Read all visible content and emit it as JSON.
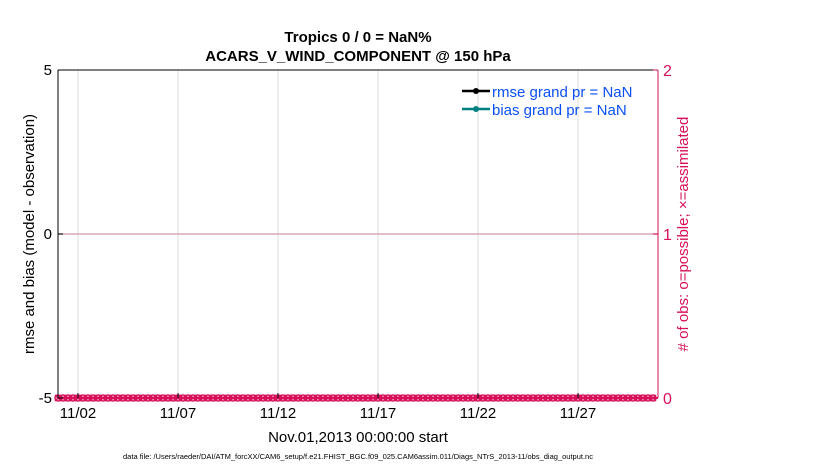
{
  "chart_data": {
    "type": "line",
    "title": [
      "Tropics 0 / 0 = NaN%",
      "ACARS_V_WIND_COMPONENT @ 150 hPa"
    ],
    "xlabel": "Nov.01,2013 00:00:00 start",
    "ylabel_left": "rmse and bias (model - observation)",
    "ylabel_right": "# of obs: o=possible; ×=assimilated",
    "footnote": "data file: /Users/raeder/DAI/ATM_forcXX/CAM6_setup/f.e21.FHIST_BGC.f09_025.CAM6assim.011/Diags_NTrS_2013-11/obs_diag_output.nc",
    "x_range_days": [
      0,
      30
    ],
    "x_ticks": [
      {
        "day": 1,
        "label": "11/02"
      },
      {
        "day": 6,
        "label": "11/07"
      },
      {
        "day": 11,
        "label": "11/12"
      },
      {
        "day": 16,
        "label": "11/17"
      },
      {
        "day": 21,
        "label": "11/22"
      },
      {
        "day": 26,
        "label": "11/27"
      }
    ],
    "ylim_left": [
      -5,
      5
    ],
    "yticks_left": [
      "-5",
      "0",
      "5"
    ],
    "ylim_right": [
      0,
      2
    ],
    "yticks_right": [
      "0",
      "1",
      "2"
    ],
    "grid": "vertical",
    "legend_placement": "top-right",
    "legend": [
      {
        "label": "rmse grand pr = NaN",
        "color": "#000000"
      },
      {
        "label": "bias grand pr = NaN",
        "color": "#008080"
      }
    ],
    "legend_text_color": "#0a4ff5",
    "right_axis_color": "#d6105a",
    "obs_interval_hours": 6,
    "obs_possible": [
      0,
      0,
      0,
      0,
      0,
      0,
      0,
      0,
      0,
      0,
      0,
      0,
      0,
      0,
      0,
      0,
      0,
      0,
      0,
      0,
      0,
      0,
      0,
      0,
      0,
      0,
      0,
      0,
      0,
      0,
      0,
      0,
      0,
      0,
      0,
      0,
      0,
      0,
      0,
      0,
      0,
      0,
      0,
      0,
      0,
      0,
      0,
      0,
      0,
      0,
      0,
      0,
      0,
      0,
      0,
      0,
      0,
      0,
      0,
      0,
      0,
      0,
      0,
      0,
      0,
      0,
      0,
      0,
      0,
      0,
      0,
      0,
      0,
      0,
      0,
      0,
      0,
      0,
      0,
      0,
      0,
      0,
      0,
      0,
      0,
      0,
      0,
      0,
      0,
      0,
      0,
      0,
      0,
      0,
      0,
      0,
      0,
      0,
      0,
      0,
      0,
      0,
      0,
      0,
      0,
      0,
      0,
      0,
      0,
      0,
      0,
      0,
      0,
      0,
      0,
      0,
      0,
      0,
      0,
      0
    ],
    "obs_assimilated": [
      0,
      0,
      0,
      0,
      0,
      0,
      0,
      0,
      0,
      0,
      0,
      0,
      0,
      0,
      0,
      0,
      0,
      0,
      0,
      0,
      0,
      0,
      0,
      0,
      0,
      0,
      0,
      0,
      0,
      0,
      0,
      0,
      0,
      0,
      0,
      0,
      0,
      0,
      0,
      0,
      0,
      0,
      0,
      0,
      0,
      0,
      0,
      0,
      0,
      0,
      0,
      0,
      0,
      0,
      0,
      0,
      0,
      0,
      0,
      0,
      0,
      0,
      0,
      0,
      0,
      0,
      0,
      0,
      0,
      0,
      0,
      0,
      0,
      0,
      0,
      0,
      0,
      0,
      0,
      0,
      0,
      0,
      0,
      0,
      0,
      0,
      0,
      0,
      0,
      0,
      0,
      0,
      0,
      0,
      0,
      0,
      0,
      0,
      0,
      0,
      0,
      0,
      0,
      0,
      0,
      0,
      0,
      0,
      0,
      0,
      0,
      0,
      0,
      0,
      0,
      0,
      0,
      0,
      0,
      0
    ]
  }
}
